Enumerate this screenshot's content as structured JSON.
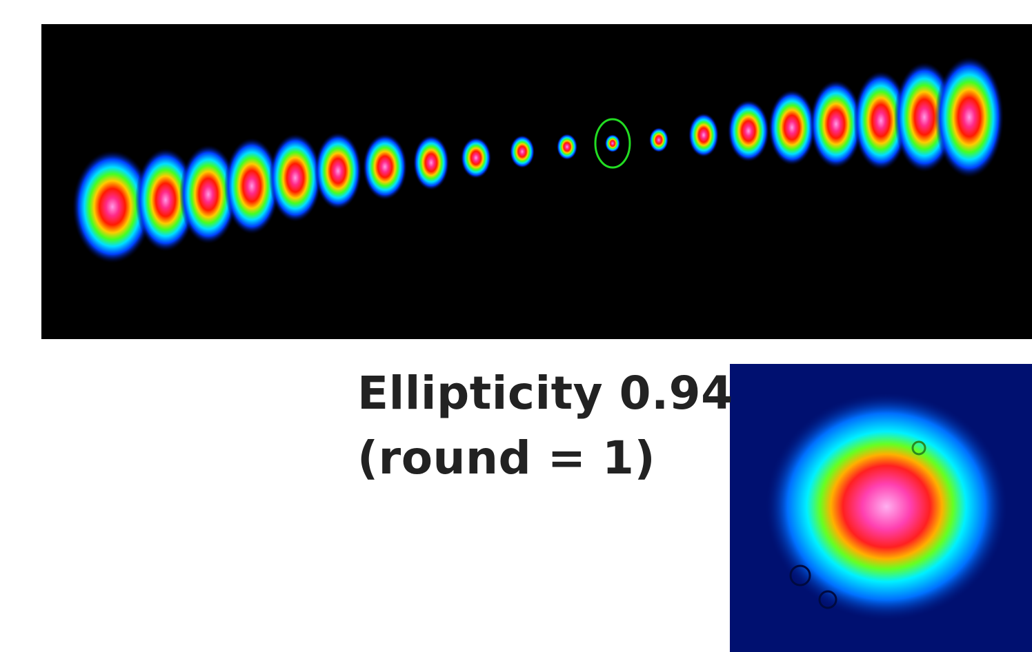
{
  "caption": {
    "line1": "Ellipticity 0.94",
    "line2": "(round = 1)"
  }
}
